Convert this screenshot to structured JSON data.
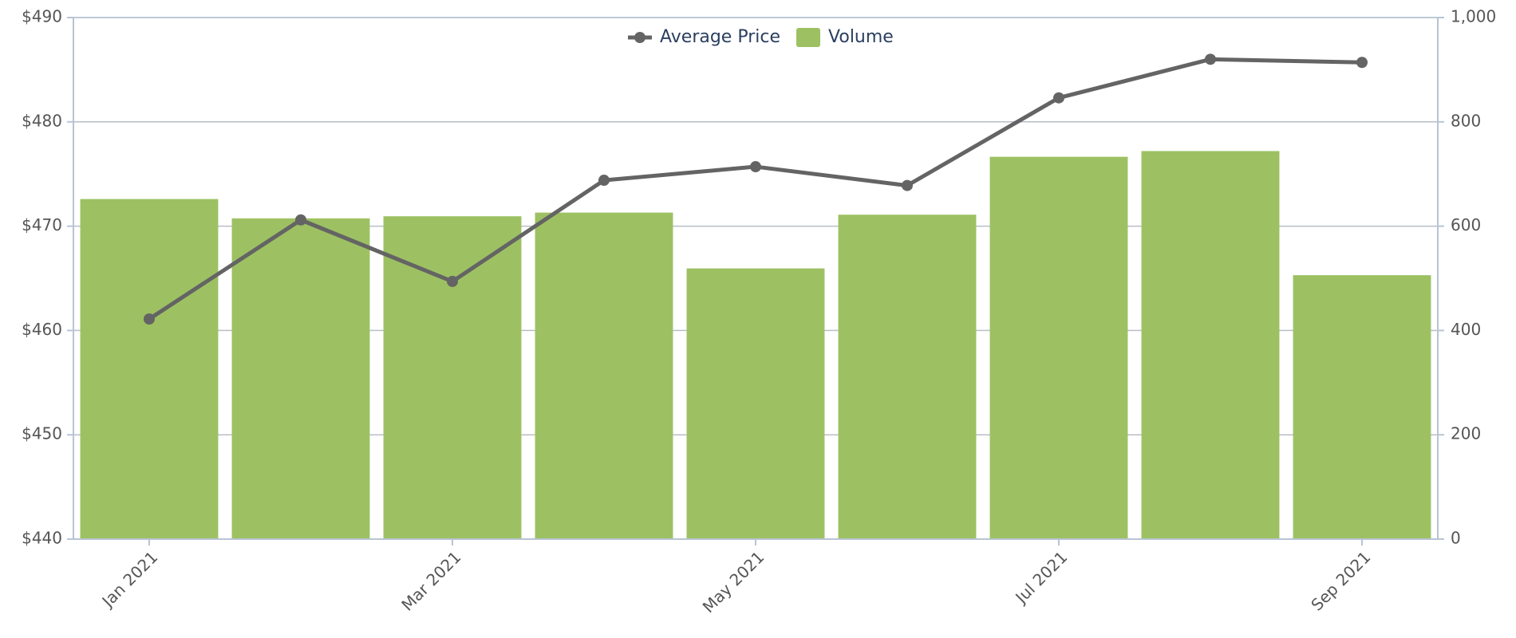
{
  "chart_data": {
    "type": "bar-line",
    "categories": [
      "Jan 2021",
      null,
      "Mar 2021",
      null,
      "May 2021",
      null,
      "Jul 2021",
      null,
      "Sep 2021"
    ],
    "series": [
      {
        "name": "Average Price",
        "type": "line",
        "color": "#646464",
        "axis": "y",
        "values": [
          461.1,
          470.6,
          464.7,
          474.4,
          475.7,
          473.9,
          482.3,
          486.0,
          485.7
        ]
      },
      {
        "name": "Volume",
        "type": "bar",
        "color": "#9dc162",
        "axis": "y2",
        "values": [
          652,
          615,
          619,
          626,
          519,
          622,
          733,
          744,
          506
        ]
      }
    ],
    "ylim": [
      440,
      490
    ],
    "yticks": [
      {
        "value": 440,
        "label": "$440"
      },
      {
        "value": 450,
        "label": "$450"
      },
      {
        "value": 460,
        "label": "$460"
      },
      {
        "value": 470,
        "label": "$470"
      },
      {
        "value": 480,
        "label": "$480"
      },
      {
        "value": 490,
        "label": "$490"
      }
    ],
    "y2lim": [
      0,
      1000
    ],
    "y2ticks": [
      0,
      200,
      400,
      600,
      800,
      {
        "value": 1000,
        "label": "1,000"
      }
    ],
    "grid": true,
    "legend": "top"
  }
}
